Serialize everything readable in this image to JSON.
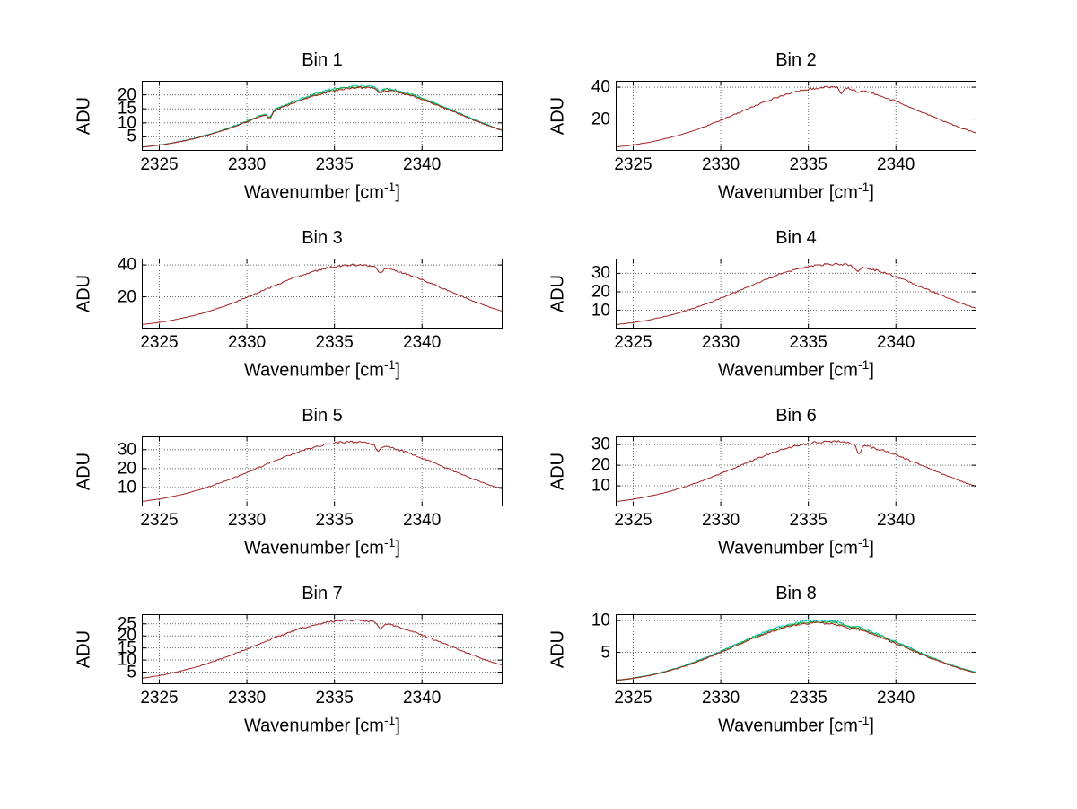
{
  "figure": {
    "background": "#ffffff",
    "ylabel": "ADU",
    "xlabel_pre": "Wavenumber [cm",
    "xlabel_sup": "-1",
    "xlabel_post": "]",
    "x_ticks": [
      2325,
      2330,
      2335,
      2340
    ],
    "x_range": [
      2324,
      2344.6
    ],
    "sample_x": [
      2324,
      2326,
      2328,
      2330,
      2332,
      2334,
      2336,
      2338,
      2340,
      2342,
      2344
    ],
    "grid_color": "#666666",
    "axis_color": "#000000",
    "grid_style": "dotted",
    "layout": "4 rows x 2 columns of subplots"
  },
  "chart_data": [
    {
      "type": "line",
      "title": "Bin 1",
      "xlabel": "Wavenumber [cm^-1]",
      "ylabel": "ADU",
      "x_range": [
        2324,
        2344.6
      ],
      "x_ticks": [
        2325,
        2330,
        2335,
        2340
      ],
      "ylim": [
        0,
        25
      ],
      "y_ticks": [
        5,
        10,
        15,
        20
      ],
      "grid": true,
      "legend": null,
      "peak": {
        "amplitude": 22.5,
        "center": 2336.6,
        "sigma": 5.3
      },
      "dips": [
        {
          "x": 2331.3,
          "depth": 0.15,
          "width": 0.12
        },
        {
          "x": 2337.6,
          "depth": 0.07,
          "width": 0.15
        }
      ],
      "sample_adu": [
        1.3,
        3.0,
        6.1,
        10.6,
        15.7,
        20.2,
        22.4,
        21.5,
        17.7,
        12.6,
        7.7
      ],
      "traces": [
        {
          "name": "trace-cyan",
          "color": "#00c2c2",
          "amp_scale": 1.03
        },
        {
          "name": "trace-green",
          "color": "#1faa1f",
          "amp_scale": 1.015
        },
        {
          "name": "trace-red",
          "color": "#a02020",
          "amp_scale": 1.0
        }
      ]
    },
    {
      "type": "line",
      "title": "Bin 2",
      "xlabel": "Wavenumber [cm^-1]",
      "ylabel": "ADU",
      "x_range": [
        2324,
        2344.6
      ],
      "x_ticks": [
        2325,
        2330,
        2335,
        2340
      ],
      "ylim": [
        0,
        44
      ],
      "y_ticks": [
        20,
        40
      ],
      "grid": true,
      "legend": null,
      "peak": {
        "amplitude": 40,
        "center": 2336.3,
        "sigma": 5.2
      },
      "dips": [
        {
          "x": 2336.9,
          "depth": 0.1,
          "width": 0.1
        },
        {
          "x": 2337.8,
          "depth": 0.05,
          "width": 0.12
        }
      ],
      "sample_adu": [
        2.3,
        5.4,
        10.8,
        18.8,
        28.0,
        36.0,
        39.9,
        38.2,
        31.5,
        22.4,
        13.8
      ],
      "traces": [
        {
          "name": "trace-red",
          "color": "#a02020",
          "amp_scale": 1.0
        }
      ]
    },
    {
      "type": "line",
      "title": "Bin 3",
      "xlabel": "Wavenumber [cm^-1]",
      "ylabel": "ADU",
      "x_range": [
        2324,
        2344.6
      ],
      "x_ticks": [
        2325,
        2330,
        2335,
        2340
      ],
      "ylim": [
        0,
        44
      ],
      "y_ticks": [
        20,
        40
      ],
      "grid": true,
      "legend": null,
      "peak": {
        "amplitude": 40,
        "center": 2336.2,
        "sigma": 5.2
      },
      "dips": [
        {
          "x": 2337.6,
          "depth": 0.1,
          "width": 0.15
        }
      ],
      "sample_adu": [
        2.3,
        5.4,
        10.8,
        18.8,
        28.0,
        36.0,
        39.9,
        38.2,
        31.5,
        22.4,
        13.8
      ],
      "traces": [
        {
          "name": "trace-red",
          "color": "#a02020",
          "amp_scale": 1.0
        }
      ]
    },
    {
      "type": "line",
      "title": "Bin 4",
      "xlabel": "Wavenumber [cm^-1]",
      "ylabel": "ADU",
      "x_range": [
        2324,
        2344.6
      ],
      "x_ticks": [
        2325,
        2330,
        2335,
        2340
      ],
      "ylim": [
        0,
        38
      ],
      "y_ticks": [
        10,
        20,
        30
      ],
      "grid": true,
      "legend": null,
      "peak": {
        "amplitude": 35,
        "center": 2336.5,
        "sigma": 5.3
      },
      "dips": [
        {
          "x": 2337.8,
          "depth": 0.08,
          "width": 0.15
        }
      ],
      "sample_adu": [
        2.0,
        4.7,
        9.5,
        16.4,
        24.5,
        31.5,
        34.9,
        33.4,
        27.5,
        19.6,
        12.0
      ],
      "traces": [
        {
          "name": "trace-red",
          "color": "#a02020",
          "amp_scale": 1.0
        }
      ]
    },
    {
      "type": "line",
      "title": "Bin 5",
      "xlabel": "Wavenumber [cm^-1]",
      "ylabel": "ADU",
      "x_range": [
        2324,
        2344.6
      ],
      "x_ticks": [
        2325,
        2330,
        2335,
        2340
      ],
      "ylim": [
        0,
        37
      ],
      "y_ticks": [
        10,
        20,
        30
      ],
      "grid": true,
      "legend": null,
      "peak": {
        "amplitude": 34,
        "center": 2336.0,
        "sigma": 5.3
      },
      "dips": [
        {
          "x": 2337.5,
          "depth": 0.1,
          "width": 0.15
        }
      ],
      "sample_adu": [
        2.0,
        4.6,
        9.2,
        15.9,
        23.8,
        30.6,
        33.9,
        32.4,
        26.8,
        19.0,
        11.7
      ],
      "traces": [
        {
          "name": "trace-red",
          "color": "#a02020",
          "amp_scale": 1.0
        }
      ]
    },
    {
      "type": "line",
      "title": "Bin 6",
      "xlabel": "Wavenumber [cm^-1]",
      "ylabel": "ADU",
      "x_range": [
        2324,
        2344.6
      ],
      "x_ticks": [
        2325,
        2330,
        2335,
        2340
      ],
      "ylim": [
        0,
        34
      ],
      "y_ticks": [
        10,
        20,
        30
      ],
      "grid": true,
      "legend": null,
      "peak": {
        "amplitude": 31.5,
        "center": 2336.3,
        "sigma": 5.4
      },
      "dips": [
        {
          "x": 2337.9,
          "depth": 0.16,
          "width": 0.12
        }
      ],
      "sample_adu": [
        1.8,
        4.3,
        8.5,
        14.8,
        22.0,
        28.3,
        31.4,
        30.1,
        24.8,
        17.6,
        10.8
      ],
      "traces": [
        {
          "name": "trace-red",
          "color": "#a02020",
          "amp_scale": 1.0
        }
      ]
    },
    {
      "type": "line",
      "title": "Bin 7",
      "xlabel": "Wavenumber [cm^-1]",
      "ylabel": "ADU",
      "x_range": [
        2324,
        2344.6
      ],
      "x_ticks": [
        2325,
        2330,
        2335,
        2340
      ],
      "ylim": [
        0,
        29
      ],
      "y_ticks": [
        5,
        10,
        15,
        20,
        25
      ],
      "grid": true,
      "legend": null,
      "peak": {
        "amplitude": 26.5,
        "center": 2336.0,
        "sigma": 5.5
      },
      "dips": [
        {
          "x": 2337.6,
          "depth": 0.09,
          "width": 0.12
        }
      ],
      "sample_adu": [
        1.5,
        3.6,
        7.2,
        12.4,
        18.5,
        23.8,
        26.4,
        25.3,
        20.9,
        14.8,
        9.1
      ],
      "traces": [
        {
          "name": "trace-red",
          "color": "#a02020",
          "amp_scale": 1.0
        }
      ]
    },
    {
      "type": "line",
      "title": "Bin 8",
      "xlabel": "Wavenumber [cm^-1]",
      "ylabel": "ADU",
      "x_range": [
        2324,
        2344.6
      ],
      "x_ticks": [
        2325,
        2330,
        2335,
        2340
      ],
      "ylim": [
        0,
        11
      ],
      "y_ticks": [
        5,
        10
      ],
      "grid": true,
      "legend": null,
      "peak": {
        "amplitude": 9.6,
        "center": 2335.6,
        "sigma": 4.9
      },
      "dips": [
        {
          "x": 2337.3,
          "depth": 0.04,
          "width": 0.15
        }
      ],
      "sample_adu": [
        0.6,
        1.4,
        2.9,
        5.0,
        7.3,
        9.1,
        9.6,
        8.5,
        6.4,
        4.1,
        2.2
      ],
      "traces": [
        {
          "name": "trace-cyan",
          "color": "#00c2c2",
          "amp_scale": 1.04
        },
        {
          "name": "trace-green",
          "color": "#1faa1f",
          "amp_scale": 1.02
        },
        {
          "name": "trace-red",
          "color": "#a02020",
          "amp_scale": 1.0
        }
      ]
    }
  ]
}
